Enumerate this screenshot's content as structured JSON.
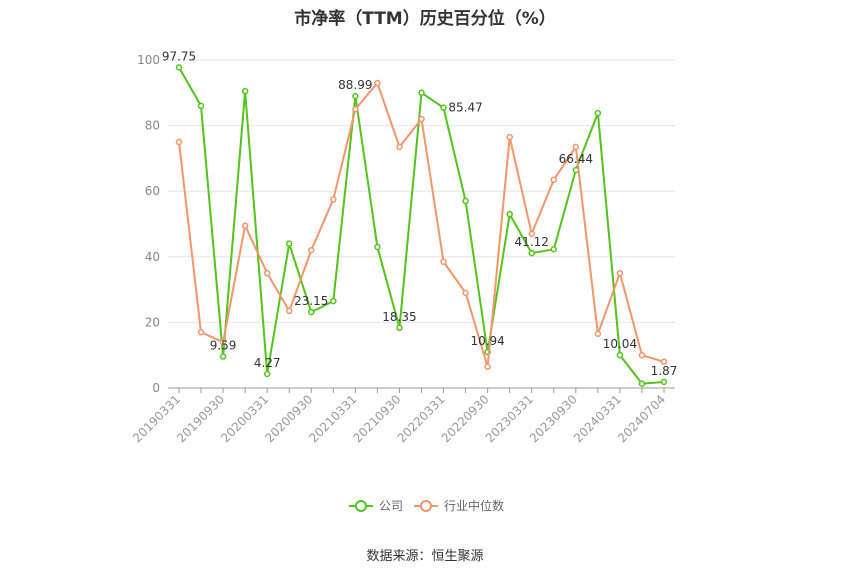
{
  "title": "市净率（TTM）历史百分位（%）",
  "source": "数据来源：恒生聚源",
  "chart_data": {
    "type": "line",
    "x": [
      "20190331",
      "20190630",
      "20190930",
      "20191231",
      "20200331",
      "20200630",
      "20200930",
      "20201231",
      "20210331",
      "20210630",
      "20210930",
      "20211231",
      "20220331",
      "20220630",
      "20220930",
      "20221231",
      "20230331",
      "20230630",
      "20230930",
      "20231231",
      "20240331",
      "20240630",
      "20240704"
    ],
    "x_tick_labels": [
      "20190331",
      "20190930",
      "20200331",
      "20200930",
      "20210331",
      "20210930",
      "20220331",
      "20220930",
      "20230331",
      "20230930",
      "20240331",
      "20240704"
    ],
    "ylim": [
      0,
      100
    ],
    "y_ticks": [
      0,
      20,
      40,
      60,
      80,
      100
    ],
    "grid": true,
    "legend_position": "bottom",
    "series": [
      {
        "name": "公司",
        "color": "#52c41a",
        "values": [
          97.75,
          86,
          9.59,
          90.5,
          4.27,
          44,
          23.15,
          26.5,
          88.99,
          43,
          18.35,
          90,
          85.47,
          57,
          10.94,
          53,
          41.12,
          42.3,
          66.44,
          83.8,
          10.04,
          1.3,
          1.87
        ],
        "data_labels": [
          {
            "index": 0,
            "text": "97.75"
          },
          {
            "index": 2,
            "text": "9.59"
          },
          {
            "index": 4,
            "text": "4.27"
          },
          {
            "index": 6,
            "text": "23.15"
          },
          {
            "index": 8,
            "text": "88.99"
          },
          {
            "index": 10,
            "text": "18.35"
          },
          {
            "index": 12,
            "text": "85.47"
          },
          {
            "index": 14,
            "text": "10.94"
          },
          {
            "index": 16,
            "text": "41.12"
          },
          {
            "index": 18,
            "text": "66.44"
          },
          {
            "index": 20,
            "text": "10.04"
          },
          {
            "index": 22,
            "text": "1.87"
          }
        ]
      },
      {
        "name": "行业中位数",
        "color": "#f4956b",
        "values": [
          75,
          17,
          14,
          49.5,
          35,
          23.5,
          42,
          57.5,
          85,
          93,
          73.5,
          82,
          38.5,
          29,
          6.5,
          76.5,
          47,
          63.5,
          73.5,
          16.5,
          35,
          10,
          8
        ]
      }
    ]
  }
}
